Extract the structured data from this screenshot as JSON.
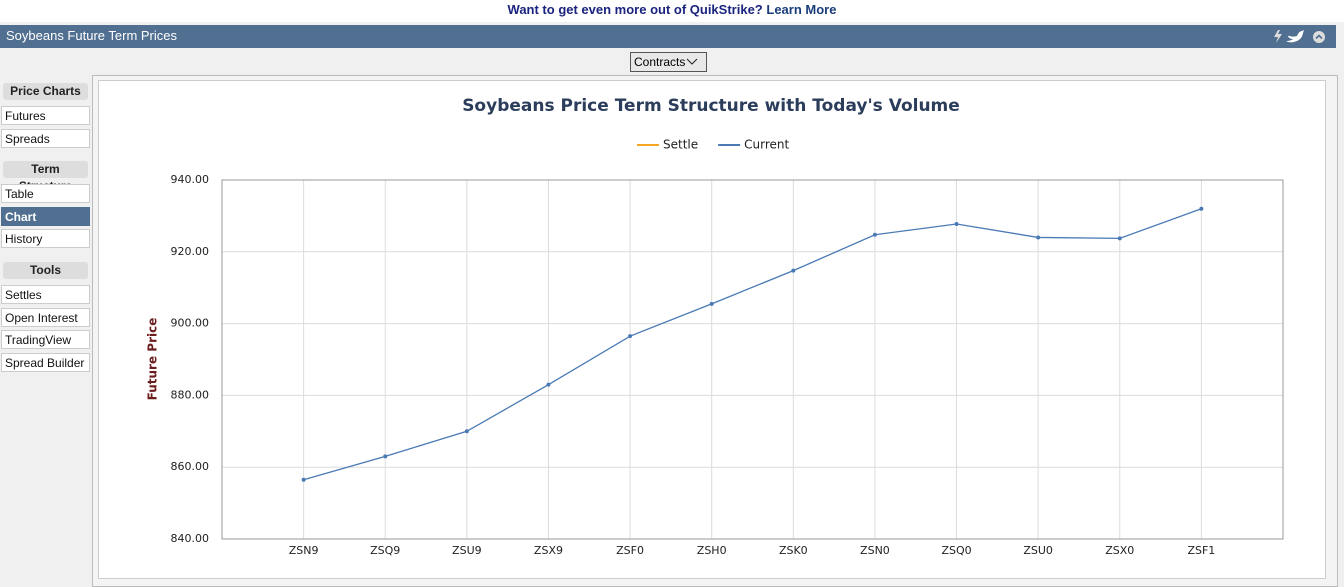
{
  "banner": {
    "text": "Want to get even more out of QuikStrike?",
    "link": "Learn More"
  },
  "header": {
    "title": "Soybeans Future Term Prices"
  },
  "toolbar": {
    "dropdown": "Contracts"
  },
  "sidebar": [
    {
      "title": "Price Charts",
      "items": [
        "Futures",
        "Spreads"
      ]
    },
    {
      "title": "Term Structure",
      "items": [
        "Table",
        "Chart",
        "History"
      ]
    },
    {
      "title": "Tools",
      "items": [
        "Settles",
        "Open Interest",
        "TradingView",
        "Spread Builder"
      ]
    }
  ],
  "chart_data": {
    "type": "line",
    "title": "Soybeans Price Term Structure with Today's Volume",
    "y_label": "Future Price",
    "categories": [
      "ZSN9",
      "ZSQ9",
      "ZSU9",
      "ZSX9",
      "ZSF0",
      "ZSH0",
      "ZSK0",
      "ZSN0",
      "ZSQ0",
      "ZSU0",
      "ZSX0",
      "ZSF1"
    ],
    "series": [
      {
        "name": "Settle",
        "color": "#f5a623",
        "values": [
          null,
          null,
          null,
          null,
          null,
          null,
          null,
          null,
          null,
          null,
          null,
          null
        ]
      },
      {
        "name": "Current",
        "color": "#4a7ab5",
        "values": [
          856.5,
          863,
          870,
          883,
          896.5,
          905.5,
          914.75,
          924.75,
          927.75,
          924,
          923.75,
          932
        ]
      }
    ],
    "ylim": [
      840,
      940
    ],
    "yticks": [
      {
        "value": 840,
        "label": "840.00"
      },
      {
        "value": 860,
        "label": "860.00"
      },
      {
        "value": 880,
        "label": "880.00"
      },
      {
        "value": 900,
        "label": "900.00"
      },
      {
        "value": 920,
        "label": "920.00"
      },
      {
        "value": 940,
        "label": "940.00"
      }
    ],
    "grid": true
  }
}
